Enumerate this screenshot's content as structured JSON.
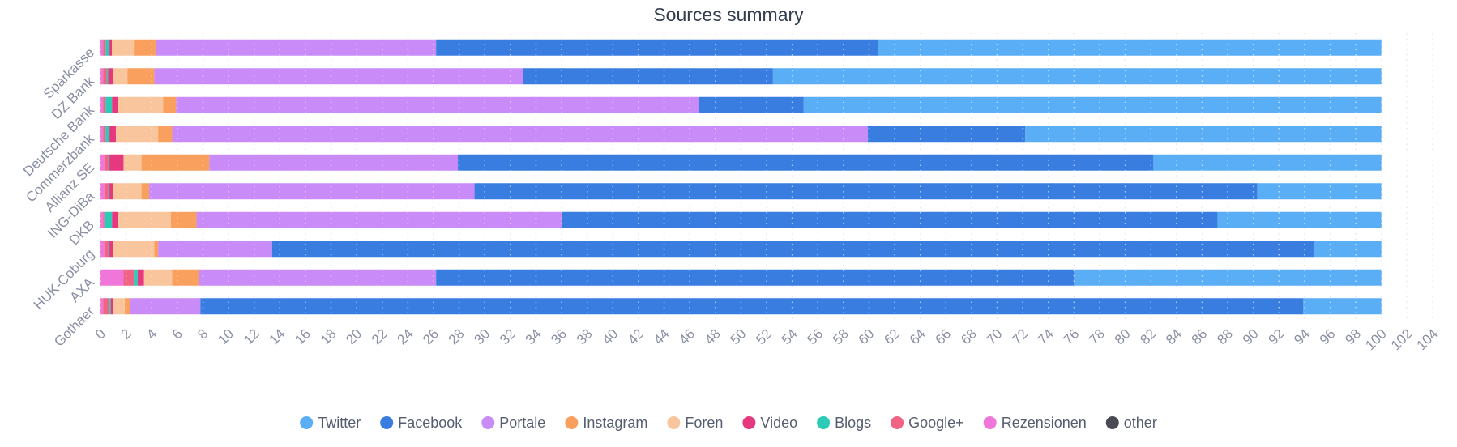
{
  "chart_data": {
    "type": "stacked_bar_horizontal",
    "title": "Sources summary",
    "categories": [
      "Sparkasse",
      "DZ Bank",
      "Deutsche Bank",
      "Commerzbank",
      "Allianz SE",
      "ING-DiBa",
      "DKB",
      "HUK-Coburg",
      "AXA",
      "Gothaer"
    ],
    "series": [
      {
        "name": "Twitter",
        "color": "#5aaef5",
        "values": [
          39.3,
          47.5,
          45.1,
          27.8,
          17.8,
          9.7,
          12.8,
          5.3,
          24.0,
          6.1
        ]
      },
      {
        "name": "Facebook",
        "color": "#3a7de0",
        "values": [
          34.5,
          19.5,
          8.2,
          12.3,
          54.3,
          61.1,
          51.2,
          81.3,
          49.8,
          86.1
        ]
      },
      {
        "name": "Portale",
        "color": "#c98bf7",
        "values": [
          21.9,
          28.8,
          40.8,
          54.3,
          19.4,
          25.4,
          28.5,
          8.9,
          18.5,
          5.5
        ]
      },
      {
        "name": "Instagram",
        "color": "#f9a05e",
        "values": [
          1.7,
          2.1,
          1.0,
          1.1,
          5.3,
          0.6,
          2.0,
          0.3,
          2.1,
          0.4
        ]
      },
      {
        "name": "Foren",
        "color": "#f9c59d",
        "values": [
          1.7,
          1.1,
          3.5,
          3.3,
          1.4,
          2.2,
          4.1,
          3.2,
          2.2,
          0.9
        ]
      },
      {
        "name": "Video",
        "color": "#e5387f",
        "values": [
          0.2,
          0.4,
          0.5,
          0.5,
          1.1,
          0.3,
          0.5,
          0.3,
          0.5,
          0.2
        ]
      },
      {
        "name": "Blogs",
        "color": "#2ccbb7",
        "values": [
          0.3,
          0.1,
          0.5,
          0.3,
          0.1,
          0.1,
          0.6,
          0.1,
          0.3,
          0.1
        ]
      },
      {
        "name": "Google+",
        "color": "#f06383",
        "values": [
          0.2,
          0.3,
          0.2,
          0.2,
          0.3,
          0.3,
          0.1,
          0.3,
          0.8,
          0.5
        ]
      },
      {
        "name": "Rezensionen",
        "color": "#f077d9",
        "values": [
          0.2,
          0.2,
          0.2,
          0.2,
          0.3,
          0.3,
          0.2,
          0.3,
          1.8,
          0.2
        ]
      },
      {
        "name": "other",
        "color": "#4a4a55",
        "values": [
          0,
          0,
          0,
          0,
          0,
          0,
          0,
          0,
          0,
          0
        ]
      }
    ],
    "xlim": [
      0,
      104
    ],
    "xticks": [
      0,
      2,
      4,
      6,
      8,
      10,
      12,
      14,
      16,
      18,
      20,
      22,
      24,
      26,
      28,
      30,
      32,
      34,
      36,
      38,
      40,
      42,
      44,
      46,
      48,
      50,
      52,
      54,
      56,
      58,
      60,
      62,
      64,
      66,
      68,
      70,
      72,
      74,
      76,
      78,
      80,
      82,
      84,
      86,
      88,
      90,
      92,
      94,
      96,
      98,
      100,
      102,
      104
    ],
    "grid": true,
    "legend": "bottom"
  }
}
